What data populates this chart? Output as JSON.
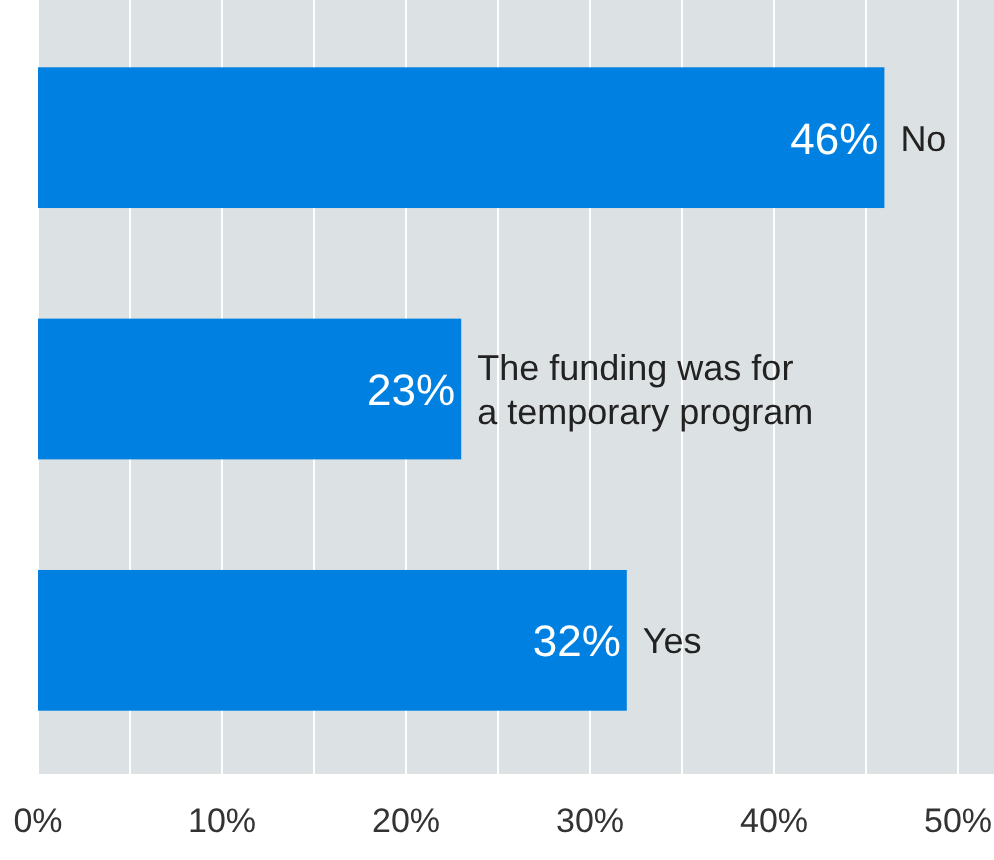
{
  "chart_data": {
    "type": "bar",
    "orientation": "horizontal",
    "categories": [
      "No",
      "The funding was for a temporary program",
      "Yes"
    ],
    "values": [
      46,
      23,
      32
    ],
    "value_labels": [
      "46%",
      "23%",
      "32%"
    ],
    "color": "#0080e0",
    "xlim": [
      0,
      50
    ],
    "xticks": [
      {
        "value": 0,
        "label": "0%"
      },
      {
        "value": 5,
        "label": null
      },
      {
        "value": 10,
        "label": "10%"
      },
      {
        "value": 15,
        "label": null
      },
      {
        "value": 20,
        "label": "20%"
      },
      {
        "value": 25,
        "label": null
      },
      {
        "value": 30,
        "label": "30%"
      },
      {
        "value": 35,
        "label": null
      },
      {
        "value": 40,
        "label": "40%"
      },
      {
        "value": 45,
        "label": null
      },
      {
        "value": 50,
        "label": "50%"
      }
    ],
    "grid": true
  }
}
